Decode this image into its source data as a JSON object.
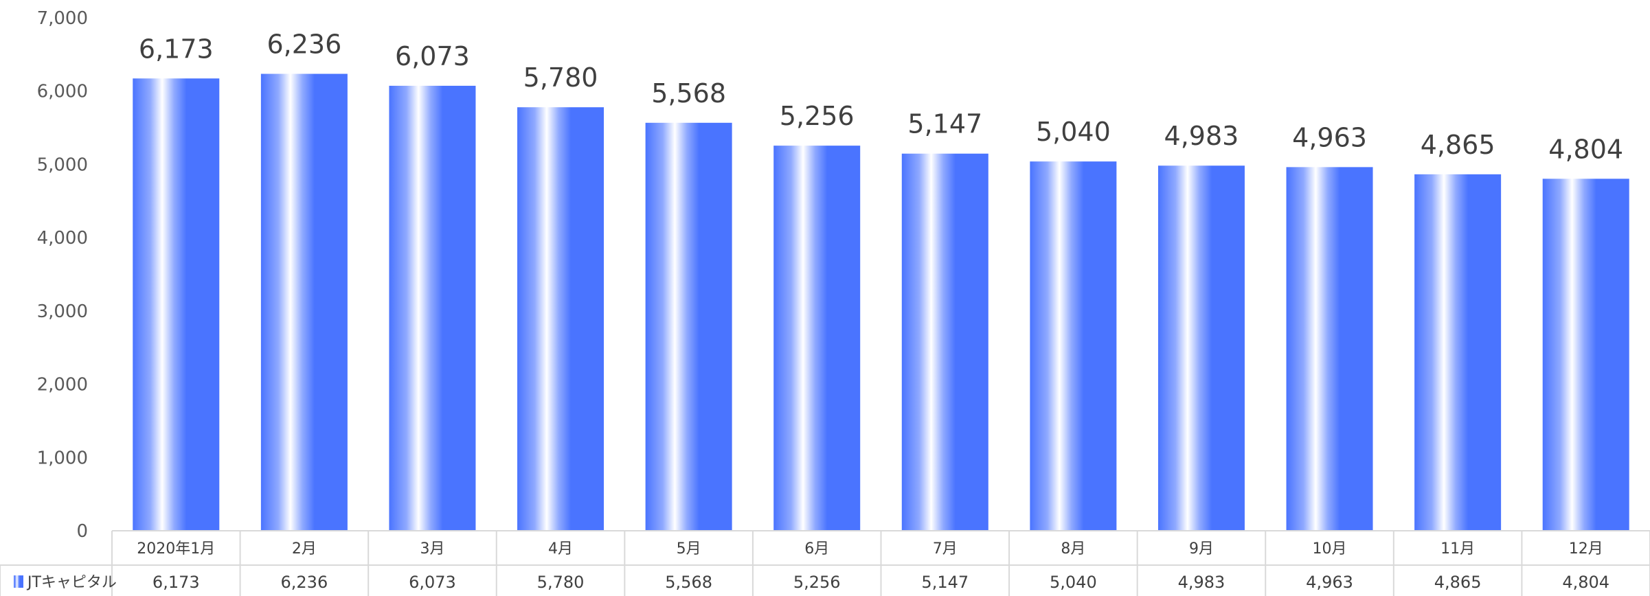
{
  "chart_data": {
    "type": "bar",
    "title": "",
    "categories": [
      "2020年1月",
      "2月",
      "3月",
      "4月",
      "5月",
      "6月",
      "7月",
      "8月",
      "9月",
      "10月",
      "11月",
      "12月"
    ],
    "series": [
      {
        "name": "JTキャピタル",
        "values": [
          6173,
          6236,
          6073,
          5780,
          5568,
          5256,
          5147,
          5040,
          4983,
          4963,
          4865,
          4804
        ]
      }
    ],
    "value_labels": [
      "6,173",
      "6,236",
      "6,073",
      "5,780",
      "5,568",
      "5,256",
      "5,147",
      "5,040",
      "4,983",
      "4,963",
      "4,865",
      "4,804"
    ],
    "y_ticks": [
      "0",
      "1,000",
      "2,000",
      "3,000",
      "4,000",
      "5,000",
      "6,000",
      "7,000"
    ],
    "ylim": [
      0,
      7000
    ],
    "grid": false,
    "data_table": true,
    "bar_color": "#4a74ff",
    "highlight_color": "#ffffff"
  }
}
